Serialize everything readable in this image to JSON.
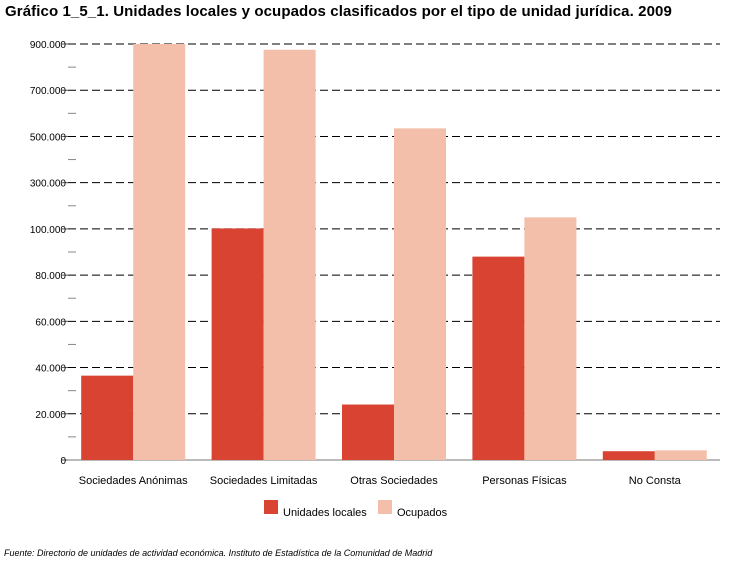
{
  "title": "Gráfico 1_5_1. Unidades locales y ocupados clasificados por el tipo de unidad jurídica. 2009",
  "source": "Fuente: Directorio de unidades de actividad económica. Instituto de Estadística de la Comunidad de Madrid",
  "chart_data": {
    "type": "bar",
    "categories": [
      "Sociedades Anónimas",
      "Sociedades Limitadas",
      "Otras Sociedades",
      "Personas Físicas",
      "No Consta"
    ],
    "tick_labels": [
      "0",
      "20.000",
      "40.000",
      "60.000",
      "80.000",
      "100.000",
      "300.000",
      "500.000",
      "700.000",
      "900.000"
    ],
    "tick_values": [
      0,
      20000,
      40000,
      60000,
      80000,
      100000,
      300000,
      500000,
      700000,
      900000
    ],
    "series": [
      {
        "name": "Unidades locales",
        "color": "#d94332",
        "values": [
          36500,
          102000,
          24000,
          88000,
          3800
        ]
      },
      {
        "name": "Ocupados",
        "color": "#f3bfab",
        "values": [
          900000,
          875000,
          535000,
          150000,
          4200
        ]
      }
    ],
    "grid": true,
    "legend": "bottom"
  }
}
